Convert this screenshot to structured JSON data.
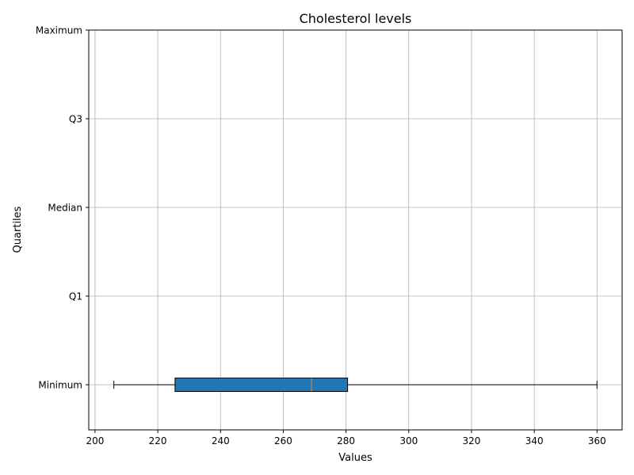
{
  "chart_data": {
    "type": "boxplot",
    "orientation": "horizontal",
    "title": "Cholesterol levels",
    "xlabel": "Values",
    "ylabel": "Quartiles",
    "xlim": [
      198,
      368
    ],
    "x_ticks": [
      200,
      220,
      240,
      260,
      280,
      300,
      320,
      340,
      360
    ],
    "y_categories": [
      "Minimum",
      "Q1",
      "Median",
      "Q3",
      "Maximum"
    ],
    "grid": true,
    "box": {
      "category": "Minimum",
      "whisker_low": 206,
      "q1": 225.5,
      "median": 269,
      "q3": 280.5,
      "whisker_high": 360
    },
    "colors": {
      "box_fill": "#1f77b4",
      "median_line": "#ff7f0e",
      "grid": "#b0b0b0",
      "axis": "#000000"
    }
  }
}
